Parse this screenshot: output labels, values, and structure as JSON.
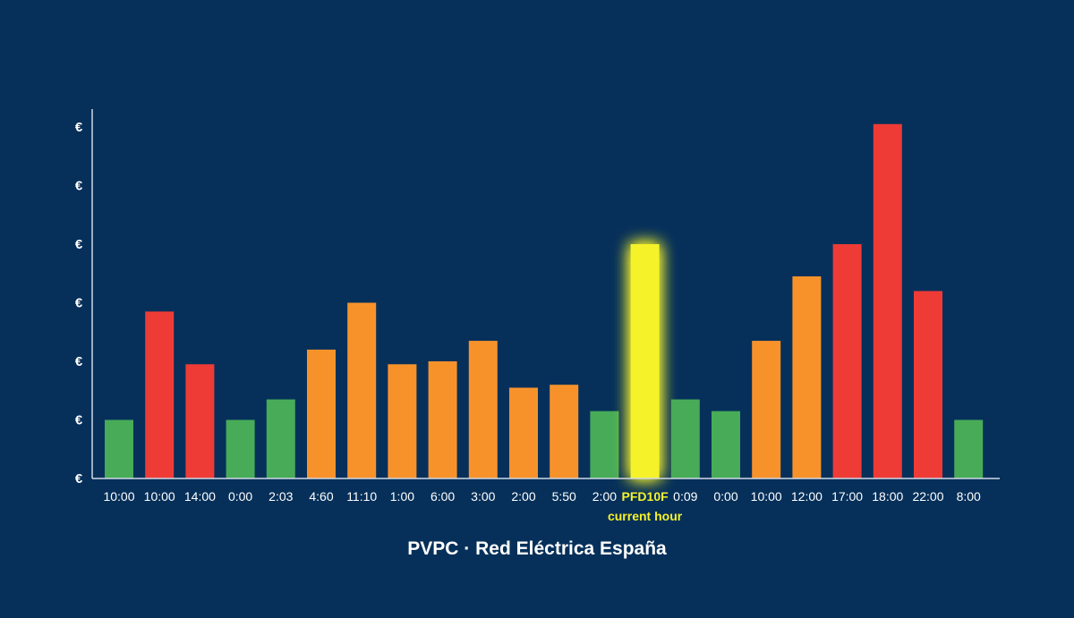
{
  "footer": "PVPC · Red Eléctrica España",
  "chart_data": {
    "type": "bar",
    "y_tick_labels": [
      "€",
      "€",
      "€",
      "€",
      "€",
      "€",
      "€"
    ],
    "categories": [
      "10:00",
      "10:00",
      "14:00",
      "0:00",
      "2:03",
      "4:60",
      "11:10",
      "1:00",
      "6:00",
      "3:00",
      "2:00",
      "5:50",
      "2:00",
      "PFD10F",
      "0:09",
      "0:00",
      "10:00",
      "12:00",
      "17:00",
      "18:00",
      "22:00",
      "8:00"
    ],
    "values": [
      1.0,
      2.85,
      1.95,
      1.0,
      1.35,
      2.2,
      3.0,
      1.95,
      2.0,
      2.35,
      1.55,
      1.6,
      1.15,
      4.0,
      1.35,
      1.15,
      2.35,
      3.45,
      4.0,
      6.05,
      3.2,
      1.0
    ],
    "levels": [
      "low",
      "high",
      "high",
      "low",
      "low",
      "mid",
      "mid",
      "mid",
      "mid",
      "mid",
      "mid",
      "mid",
      "low",
      "current",
      "low",
      "low",
      "mid",
      "mid",
      "high",
      "high",
      "high",
      "low"
    ],
    "level_colors": {
      "low": "#47ab58",
      "mid": "#f7922b",
      "high": "#ee3b36",
      "current": "#f6f22a"
    },
    "highlight_index": 13,
    "annotation": "current hour",
    "ylim": [
      0,
      6
    ],
    "grid": false,
    "legend": "none"
  }
}
